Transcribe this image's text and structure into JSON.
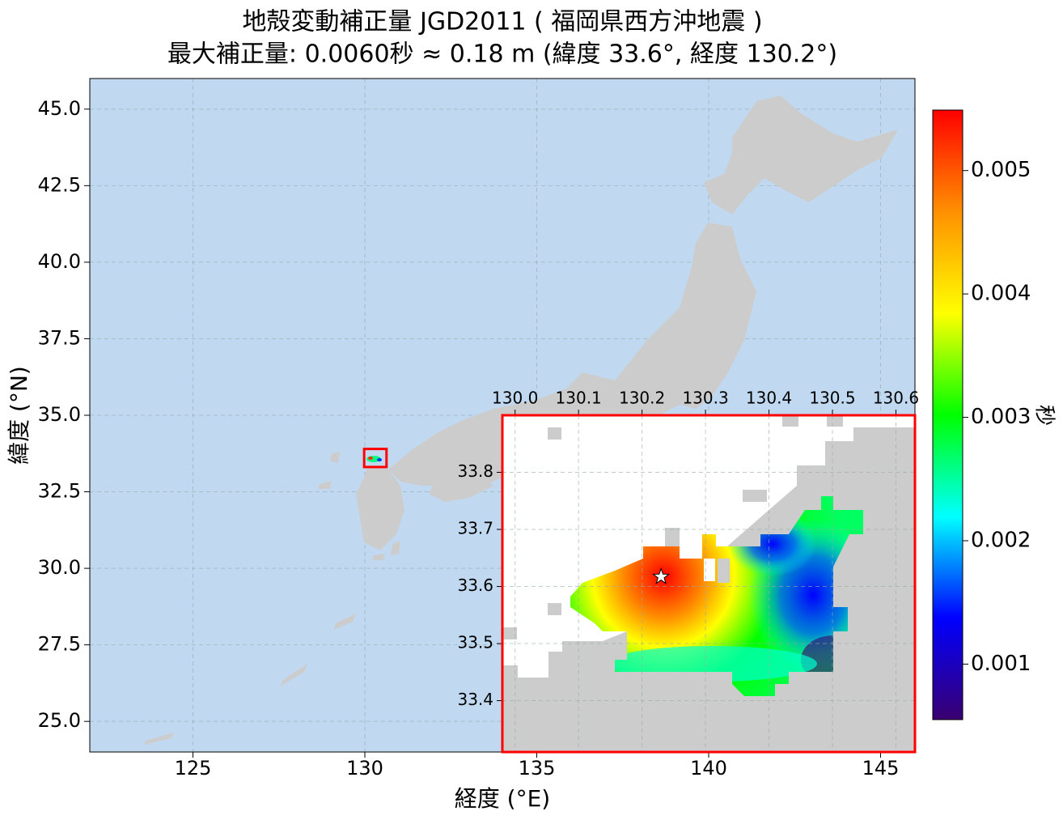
{
  "chart_data": {
    "type": "map",
    "title": "地殻変動補正量 JGD2011 ( 福岡県西方沖地震 )",
    "subtitle": "最大補正量: 0.0060秒 ≈ 0.18 m  (緯度 33.6°, 経度 130.2°)",
    "xlabel": "経度 (°E)",
    "ylabel": "緯度 (°N)",
    "xlim": [
      122,
      146
    ],
    "ylim": [
      24,
      46
    ],
    "xticks": [
      125,
      130,
      135,
      140,
      145
    ],
    "yticks": [
      {
        "value": 25,
        "label": "25.0"
      },
      27.5,
      {
        "value": 30,
        "label": "30.0"
      },
      32.5,
      {
        "value": 35,
        "label": "35.0"
      },
      37.5,
      {
        "value": 40,
        "label": "40.0"
      },
      42.5,
      {
        "value": 45,
        "label": "45.0"
      }
    ],
    "grid": true,
    "sea_color": "#c0d9f1",
    "land_color": "#cccccc",
    "inset": {
      "xlim": [
        129.98,
        130.63
      ],
      "ylim": [
        33.31,
        33.9
      ],
      "xticks": [
        {
          "value": 130,
          "label": "130.0"
        },
        130.1,
        130.2,
        130.3,
        130.4,
        130.5,
        130.6
      ],
      "yticks": [
        33.4,
        33.5,
        33.6,
        33.7,
        33.8
      ],
      "border_color": "#ff0000"
    },
    "epicenter": {
      "lon": 130.23,
      "lat": 33.617
    },
    "colorbar": {
      "label": "秒",
      "clim": [
        0.00055,
        0.00549
      ],
      "ticks": [
        0.001,
        0.002,
        0.003,
        0.004,
        0.005
      ],
      "colormap": [
        "#3a0070",
        "#0000ff",
        "#00ffff",
        "#00ff00",
        "#ffff00",
        "#ff9000",
        "#ff0000"
      ]
    }
  }
}
